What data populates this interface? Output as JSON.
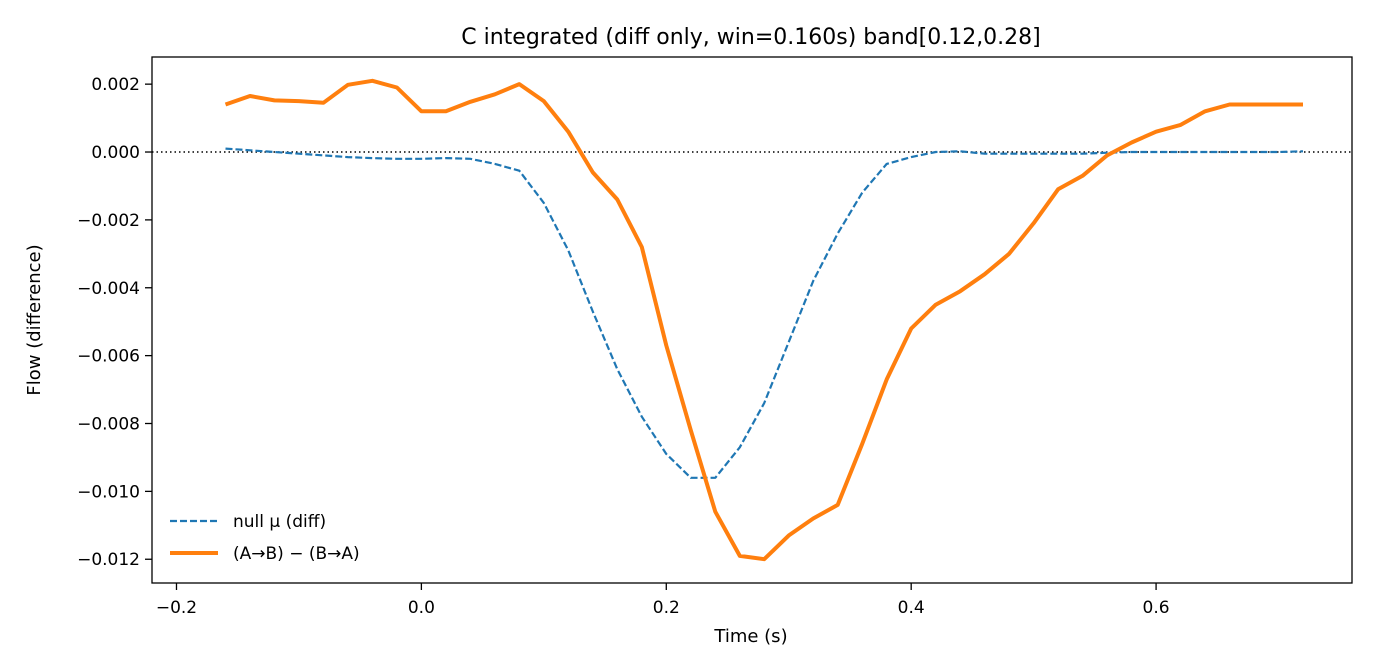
{
  "chart_data": {
    "type": "line",
    "title": "C integrated (diff only, win=0.160s)   band[0.12,0.28]",
    "xlabel": "Time (s)",
    "ylabel": "Flow (difference)",
    "xlim": [
      -0.22,
      0.76
    ],
    "ylim": [
      -0.0127,
      0.0028
    ],
    "xticks": [
      -0.2,
      0.0,
      0.2,
      0.4,
      0.6
    ],
    "xtick_labels": [
      "−0.2",
      "0.0",
      "0.2",
      "0.4",
      "0.6"
    ],
    "yticks": [
      0.002,
      0.0,
      -0.002,
      -0.004,
      -0.006,
      -0.008,
      -0.01,
      -0.012
    ],
    "ytick_labels": [
      "0.002",
      "0.000",
      "−0.002",
      "−0.004",
      "−0.006",
      "−0.008",
      "−0.010",
      "−0.012"
    ],
    "reference_line": {
      "y": 0,
      "style": "dotted",
      "color": "#000000"
    },
    "grid": false,
    "legend_position": "lower-left",
    "series": [
      {
        "name": "null μ (diff)",
        "style": "dashed",
        "color": "#1f77b4",
        "x": [
          -0.16,
          -0.14,
          -0.12,
          -0.1,
          -0.08,
          -0.06,
          -0.04,
          -0.02,
          0.0,
          0.02,
          0.04,
          0.06,
          0.08,
          0.1,
          0.12,
          0.14,
          0.16,
          0.18,
          0.2,
          0.22,
          0.24,
          0.26,
          0.28,
          0.3,
          0.32,
          0.34,
          0.36,
          0.38,
          0.4,
          0.42,
          0.44,
          0.46,
          0.48,
          0.5,
          0.52,
          0.54,
          0.56,
          0.58,
          0.6,
          0.62,
          0.64,
          0.66,
          0.68,
          0.7,
          0.72
        ],
        "values": [
          0.0001,
          5e-05,
          0.0,
          -5e-05,
          -0.0001,
          -0.00015,
          -0.00018,
          -0.0002,
          -0.0002,
          -0.00018,
          -0.0002,
          -0.00035,
          -0.00055,
          -0.0015,
          -0.0029,
          -0.0047,
          -0.0064,
          -0.0078,
          -0.0089,
          -0.0096,
          -0.0096,
          -0.0087,
          -0.0074,
          -0.0056,
          -0.0038,
          -0.0024,
          -0.0012,
          -0.00035,
          -0.00015,
          0.0,
          2e-05,
          -5e-05,
          -5e-05,
          -5e-05,
          -5e-05,
          -5e-05,
          -2e-05,
          0.0,
          0.0,
          0.0,
          0.0,
          0.0,
          0.0,
          0.0,
          2e-05
        ]
      },
      {
        "name": "(A→B) − (B→A)",
        "style": "solid",
        "color": "#ff7f0e",
        "x": [
          -0.16,
          -0.14,
          -0.12,
          -0.1,
          -0.08,
          -0.06,
          -0.04,
          -0.02,
          0.0,
          0.02,
          0.04,
          0.06,
          0.08,
          0.1,
          0.12,
          0.14,
          0.16,
          0.18,
          0.2,
          0.22,
          0.24,
          0.26,
          0.28,
          0.3,
          0.32,
          0.34,
          0.36,
          0.38,
          0.4,
          0.42,
          0.44,
          0.46,
          0.48,
          0.5,
          0.52,
          0.54,
          0.56,
          0.58,
          0.6,
          0.62,
          0.64,
          0.66,
          0.68,
          0.7,
          0.72
        ],
        "values": [
          0.0014,
          0.00165,
          0.00152,
          0.0015,
          0.00145,
          0.00198,
          0.0021,
          0.0019,
          0.0012,
          0.0012,
          0.00148,
          0.0017,
          0.002,
          0.0015,
          0.0006,
          -0.0006,
          -0.0014,
          -0.0028,
          -0.0057,
          -0.0082,
          -0.0106,
          -0.0119,
          -0.012,
          -0.0113,
          -0.0108,
          -0.0104,
          -0.0086,
          -0.0067,
          -0.0052,
          -0.0045,
          -0.0041,
          -0.0036,
          -0.003,
          -0.0021,
          -0.0011,
          -0.0007,
          -0.0001,
          0.00028,
          0.0006,
          0.0008,
          0.0012,
          0.0014,
          0.0014,
          0.0014,
          0.0014
        ]
      }
    ]
  }
}
